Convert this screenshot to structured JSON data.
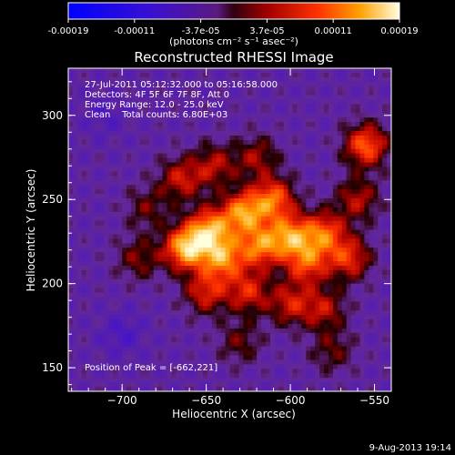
{
  "chart_data": {
    "type": "heatmap",
    "title": "Reconstructed RHESSI Image",
    "colorbar": {
      "min": -0.00019,
      "max": 0.00019,
      "ticks": [
        "-0.00019",
        "-0.00011",
        "-3.7e-05",
        "3.7e-05",
        "0.00011",
        "0.00019"
      ],
      "unit_label": "(photons cm⁻² s⁻¹ asec⁻²)",
      "colormap": "blue-purple-red-yellow-white"
    },
    "xlabel": "Heliocentric X (arcsec)",
    "ylabel": "Heliocentric Y (arcsec)",
    "xlim": [
      -732,
      -540
    ],
    "ylim": [
      136,
      328
    ],
    "xticks": [
      "-700",
      "-650",
      "-600",
      "-550"
    ],
    "yticks": [
      "150",
      "200",
      "250",
      "300"
    ],
    "annotations": [
      "27-Jul-2011 05:12:32.000 to 05:16:58.000",
      "Detectors: 4F 5F 6F 7F 8F, Att 0",
      "Energy Range: 12.0 - 25.0 keV",
      "Clean    Total counts: 6.80E+03"
    ],
    "peak_label": "Position of Peak = [-662,221]",
    "peak": [
      -662,
      221
    ],
    "sources": [
      {
        "x": -662,
        "y": 221,
        "amp": 1.0
      },
      {
        "x": -648,
        "y": 232,
        "amp": 0.85
      },
      {
        "x": -640,
        "y": 215,
        "amp": 0.8
      },
      {
        "x": -628,
        "y": 242,
        "amp": 0.85
      },
      {
        "x": -618,
        "y": 222,
        "amp": 0.75
      },
      {
        "x": -610,
        "y": 250,
        "amp": 0.75
      },
      {
        "x": -600,
        "y": 228,
        "amp": 0.8
      },
      {
        "x": -590,
        "y": 212,
        "amp": 0.65
      },
      {
        "x": -580,
        "y": 230,
        "amp": 0.7
      },
      {
        "x": -565,
        "y": 215,
        "amp": 0.6
      },
      {
        "x": -555,
        "y": 282,
        "amp": 0.75
      },
      {
        "x": -650,
        "y": 195,
        "amp": 0.55
      },
      {
        "x": -625,
        "y": 195,
        "amp": 0.55
      },
      {
        "x": -600,
        "y": 188,
        "amp": 0.5
      },
      {
        "x": -580,
        "y": 185,
        "amp": 0.45
      },
      {
        "x": -665,
        "y": 262,
        "amp": 0.5
      },
      {
        "x": -645,
        "y": 270,
        "amp": 0.45
      },
      {
        "x": -620,
        "y": 275,
        "amp": 0.4
      },
      {
        "x": -690,
        "y": 215,
        "amp": 0.35
      },
      {
        "x": -685,
        "y": 245,
        "amp": 0.3
      },
      {
        "x": -560,
        "y": 250,
        "amp": 0.45
      },
      {
        "x": -630,
        "y": 165,
        "amp": 0.3
      },
      {
        "x": -575,
        "y": 160,
        "amp": 0.3
      },
      {
        "x": -700,
        "y": 170,
        "amp": -0.2
      },
      {
        "x": -710,
        "y": 300,
        "amp": -0.15
      }
    ]
  },
  "footer": {
    "timestamp": "9-Aug-2013 19:14"
  }
}
